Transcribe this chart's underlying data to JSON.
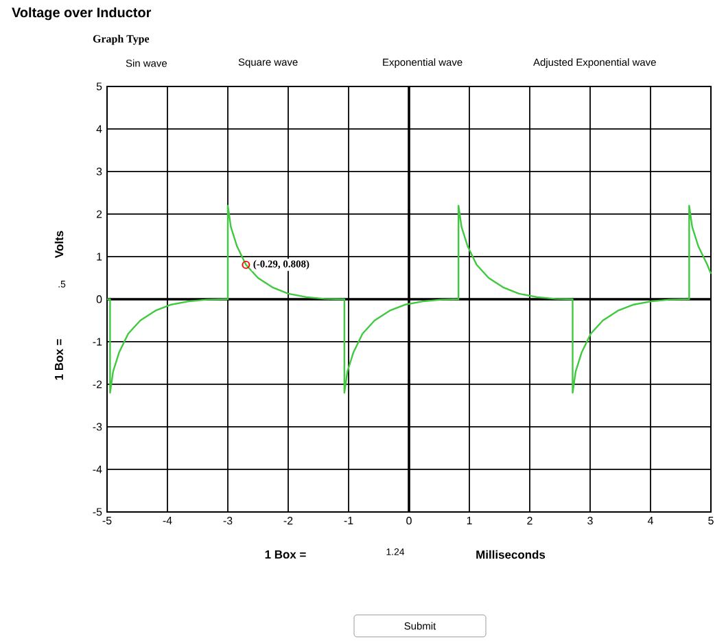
{
  "chart_data": {
    "type": "line",
    "title": "Voltage over Inductor",
    "subtitle": "Graph Type",
    "ylabel": "Volts",
    "x": [
      -5,
      -4.95,
      -4.95,
      -4.9,
      -4.8,
      -4.65,
      -4.45,
      -4.2,
      -3.95,
      -3.65,
      -3.35,
      -3.05,
      -3.0,
      -3.0,
      -2.95,
      -2.85,
      -2.7,
      -2.5,
      -2.25,
      -2.0,
      -1.7,
      -1.4,
      -1.1,
      -1.07,
      -1.07,
      -1.02,
      -0.92,
      -0.77,
      -0.57,
      -0.32,
      -0.07,
      0.23,
      0.53,
      0.82,
      0.82,
      0.87,
      0.97,
      1.12,
      1.32,
      1.57,
      1.82,
      2.12,
      2.42,
      2.71,
      2.71,
      2.76,
      2.86,
      3.01,
      3.21,
      3.46,
      3.71,
      4.01,
      4.31,
      4.64,
      4.64,
      4.69,
      4.79,
      4.94,
      5
    ],
    "values": [
      0,
      0,
      -2.2,
      -1.7,
      -1.25,
      -0.81,
      -0.5,
      -0.27,
      -0.13,
      -0.05,
      -0.01,
      0,
      0,
      2.2,
      1.7,
      1.25,
      0.81,
      0.5,
      0.27,
      0.13,
      0.05,
      0.01,
      0,
      0,
      -2.2,
      -1.7,
      -1.25,
      -0.81,
      -0.5,
      -0.27,
      -0.13,
      -0.05,
      -0.01,
      0,
      2.2,
      1.7,
      1.25,
      0.81,
      0.5,
      0.27,
      0.13,
      0.05,
      0.01,
      0,
      -2.2,
      -1.7,
      -1.25,
      -0.81,
      -0.5,
      -0.27,
      -0.13,
      -0.05,
      -0.01,
      0,
      2.2,
      1.7,
      1.25,
      0.81,
      0.6
    ],
    "color": "#3ec93e",
    "xlim": [
      -5,
      5
    ],
    "ylim": [
      -5,
      5
    ],
    "xticks": [
      -5,
      -4,
      -3,
      -2,
      -1,
      0,
      1,
      2,
      3,
      4,
      5
    ],
    "yticks": [
      -5,
      -4,
      -3,
      -2,
      -1,
      0,
      1,
      2,
      3,
      4,
      5
    ],
    "grid": true,
    "marker": "none",
    "line_style": "solid",
    "annotations": [
      {
        "text": "(-0.29, 0.808)",
        "x": -2.7,
        "y": 0.808
      },
      "Sin wave",
      "Square wave",
      "Exponential wave",
      "Adjusted Exponential wave",
      "1 Box =",
      ".5",
      "1 Box =",
      "1.24",
      "Milliseconds",
      "Submit"
    ]
  }
}
